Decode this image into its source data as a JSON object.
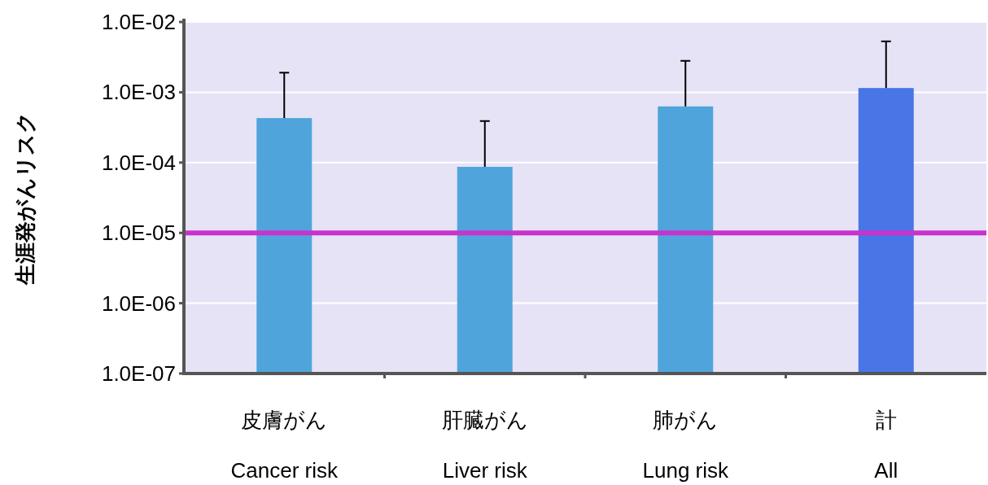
{
  "chart_data": {
    "type": "bar",
    "ylabel": "生涯発がんリスク",
    "categories": [
      "皮膚がん\nCancer risk",
      "肝臓がん\nLiver risk",
      "肺がん\nLung risk",
      "計\nAll"
    ],
    "values": [
      0.00043,
      8.7e-05,
      0.00063,
      0.00115
    ],
    "colors": [
      "#4fa5db",
      "#4fa5db",
      "#4fa5db",
      "#4876e6"
    ],
    "errors": [
      [
        0.00043,
        0.0019
      ],
      [
        8.7e-05,
        0.00039
      ],
      [
        0.00063,
        0.0028
      ],
      [
        0.00115,
        0.0053
      ]
    ],
    "log": true,
    "ylim": [
      1e-07,
      0.01
    ],
    "yticks": [
      {
        "value": 1e-07,
        "label": "1.0E-07"
      },
      {
        "value": 1e-06,
        "label": "1.0E-06"
      },
      {
        "value": 1e-05,
        "label": "1.0E-05"
      },
      {
        "value": 0.0001,
        "label": "1.0E-04"
      },
      {
        "value": 0.001,
        "label": "1.0E-03"
      },
      {
        "value": 0.01,
        "label": "1.0E-02"
      }
    ],
    "grid": "y",
    "ref_lines": [
      {
        "axis": "y",
        "value": 1e-05,
        "color": "#c733cc"
      }
    ]
  }
}
